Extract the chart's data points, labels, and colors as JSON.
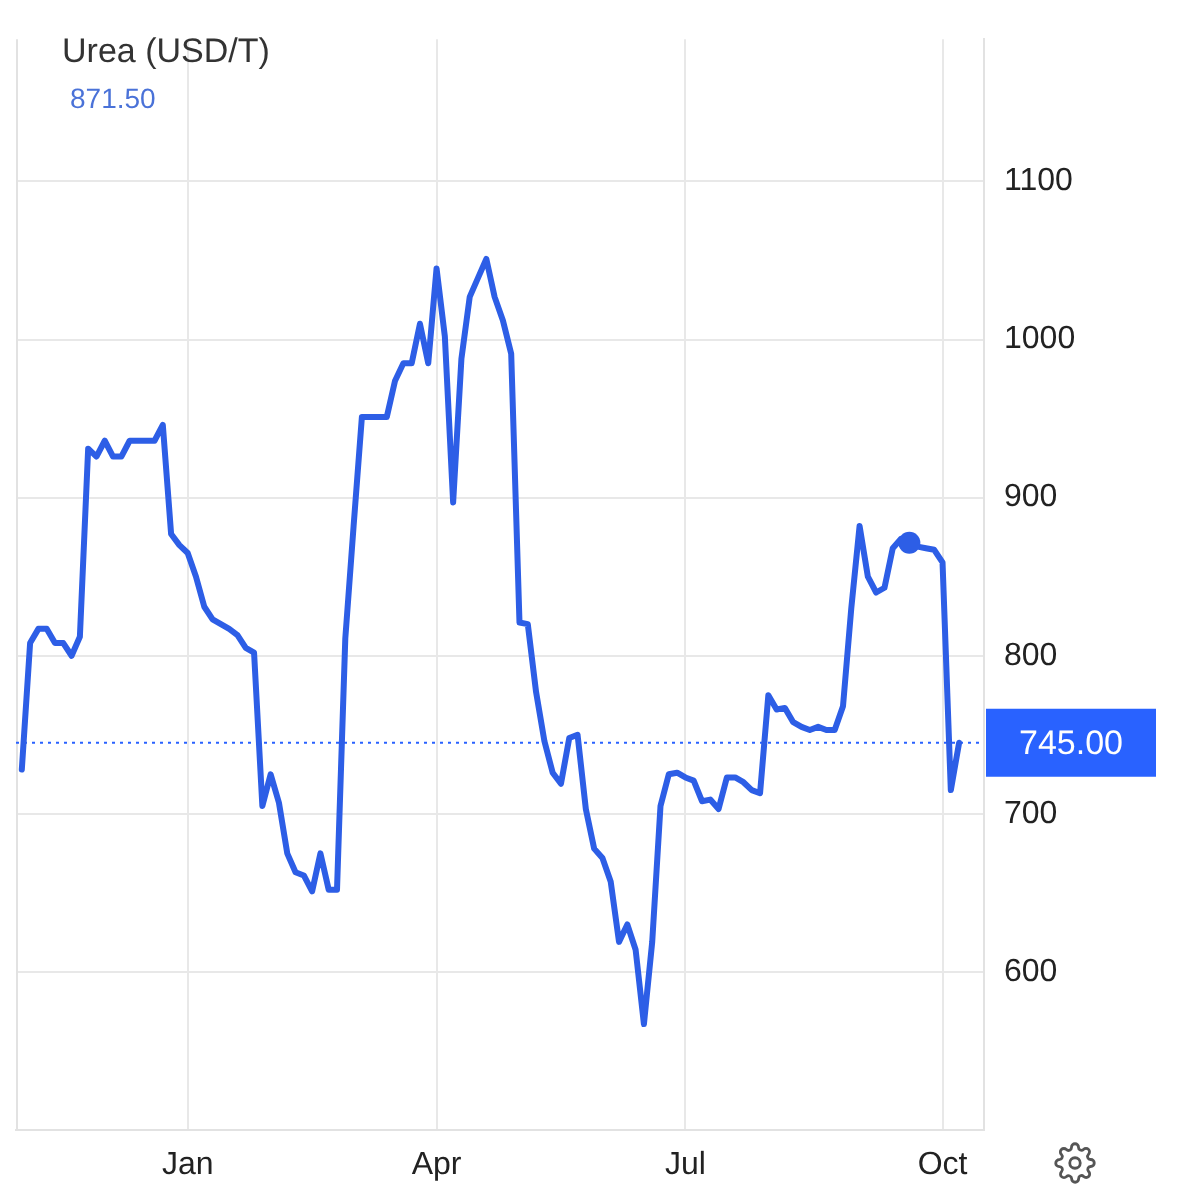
{
  "chart_data": {
    "type": "line",
    "title": "Urea (USD/T)",
    "annotations": [
      "871.50"
    ],
    "categories": [
      null,
      null,
      null,
      null,
      null,
      null,
      null,
      null,
      null,
      null,
      null,
      null,
      null,
      null,
      null,
      null,
      null,
      null,
      null,
      null,
      "Jan",
      null,
      null,
      null,
      null,
      null,
      null,
      null,
      null,
      null,
      null,
      null,
      null,
      null,
      null,
      null,
      null,
      null,
      null,
      null,
      null,
      null,
      null,
      null,
      null,
      null,
      null,
      null,
      null,
      null,
      "Apr",
      null,
      null,
      null,
      null,
      null,
      null,
      null,
      null,
      null,
      null,
      null,
      null,
      null,
      null,
      null,
      null,
      null,
      null,
      null,
      null,
      null,
      null,
      null,
      null,
      null,
      null,
      null,
      null,
      null,
      "Jul",
      null,
      null,
      null,
      null,
      null,
      null,
      null,
      null,
      null,
      null,
      null,
      null,
      null,
      null,
      null,
      null,
      null,
      null,
      null,
      null,
      null,
      null,
      null,
      null,
      null,
      null,
      null,
      null,
      null,
      null,
      "Oct",
      null,
      null
    ],
    "series": [
      {
        "color": "#2d5ee6",
        "values": [
          728,
          808,
          817,
          817,
          808,
          808,
          800,
          812,
          931,
          926,
          936,
          926,
          926,
          936,
          936,
          936,
          936,
          946,
          877,
          870,
          865,
          850,
          831,
          823,
          820,
          817,
          813,
          805,
          802,
          705,
          725,
          707,
          675,
          663,
          661,
          651,
          675,
          652,
          652,
          811,
          882,
          951,
          951,
          951,
          951,
          974,
          985,
          985,
          1010,
          985,
          1045,
          1002,
          897,
          988,
          1027,
          1039,
          1051,
          1027,
          1012,
          991,
          821,
          820,
          777,
          746,
          726,
          719,
          748,
          750,
          703,
          678,
          672,
          657,
          619,
          630,
          614,
          567,
          619,
          705,
          725,
          726,
          723,
          721,
          708,
          709,
          703,
          723,
          723,
          720,
          715,
          713,
          775,
          766,
          767,
          758,
          755,
          753,
          755,
          753,
          753,
          768,
          830,
          882,
          850,
          840,
          843,
          868,
          874,
          872,
          869,
          868,
          867,
          859,
          715,
          745
        ]
      },
      {
        "type": "scatter",
        "color": "#2d5ee6",
        "marker": "circle",
        "values": [
          null,
          null,
          null,
          null,
          null,
          null,
          null,
          null,
          null,
          null,
          null,
          null,
          null,
          null,
          null,
          null,
          null,
          null,
          null,
          null,
          null,
          null,
          null,
          null,
          null,
          null,
          null,
          null,
          null,
          null,
          null,
          null,
          null,
          null,
          null,
          null,
          null,
          null,
          null,
          null,
          null,
          null,
          null,
          null,
          null,
          null,
          null,
          null,
          null,
          null,
          null,
          null,
          null,
          null,
          null,
          null,
          null,
          null,
          null,
          null,
          null,
          null,
          null,
          null,
          null,
          null,
          null,
          null,
          null,
          null,
          null,
          null,
          null,
          null,
          null,
          null,
          null,
          null,
          null,
          null,
          null,
          null,
          null,
          null,
          null,
          null,
          null,
          null,
          null,
          null,
          null,
          null,
          null,
          null,
          null,
          null,
          null,
          null,
          null,
          null,
          null,
          null,
          null,
          null,
          null,
          null,
          null,
          871.5,
          null,
          null,
          null,
          null,
          null,
          null
        ]
      }
    ],
    "ylim": [
      500,
      1190
    ],
    "yticks": [
      600,
      700,
      800,
      900,
      1000,
      1100
    ],
    "ref_lines": [
      {
        "axis": "y",
        "value": 745,
        "label": "745.00",
        "color": "#2962ff",
        "line_style": "dotted"
      }
    ],
    "grid": true,
    "legend": false
  }
}
